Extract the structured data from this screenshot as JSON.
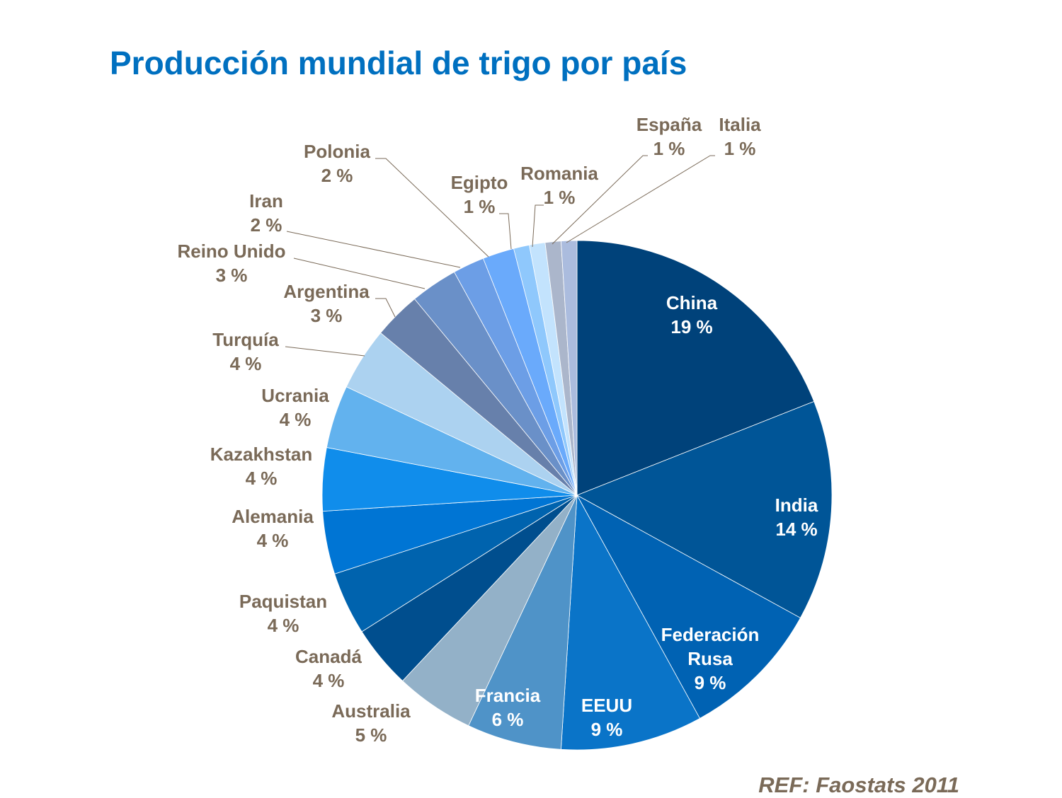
{
  "chart_data": {
    "type": "pie",
    "title": "Producción mundial de trigo por país",
    "source": "REF: Faostats 2011",
    "unit": "%",
    "slices": [
      {
        "name": "China",
        "value": 19,
        "label": "19 %",
        "color": "#00427A"
      },
      {
        "name": "India",
        "value": 14,
        "label": "14 %",
        "color": "#005597"
      },
      {
        "name": "Federación Rusa",
        "value": 9,
        "label": "9 %",
        "color": "#0062B3"
      },
      {
        "name": "EEUU",
        "value": 9,
        "label": "9 %",
        "color": "#0A74C8"
      },
      {
        "name": "Francia",
        "value": 6,
        "label": "6 %",
        "color": "#4F93C8"
      },
      {
        "name": "Australia",
        "value": 5,
        "label": "5 %",
        "color": "#93B1C8"
      },
      {
        "name": "Canadá",
        "value": 4,
        "label": "4 %",
        "color": "#004E8E"
      },
      {
        "name": "Paquistan",
        "value": 4,
        "label": "4 %",
        "color": "#0063AE"
      },
      {
        "name": "Alemania",
        "value": 4,
        "label": "4 %",
        "color": "#0075D4"
      },
      {
        "name": "Kazakhstan",
        "value": 4,
        "label": "4 %",
        "color": "#108DEB"
      },
      {
        "name": "Ucrania",
        "value": 4,
        "label": "4 %",
        "color": "#62B2EE"
      },
      {
        "name": "Turquía",
        "value": 4,
        "label": "4 %",
        "color": "#ACD2F0"
      },
      {
        "name": "Argentina",
        "value": 3,
        "label": "3 %",
        "color": "#6780AB"
      },
      {
        "name": "Reino Unido",
        "value": 3,
        "label": "3 %",
        "color": "#6A90C8"
      },
      {
        "name": "Iran",
        "value": 2,
        "label": "2 %",
        "color": "#6C9EE6"
      },
      {
        "name": "Polonia",
        "value": 2,
        "label": "2 %",
        "color": "#6AAAFB"
      },
      {
        "name": "Egipto",
        "value": 1,
        "label": "1 %",
        "color": "#8FC8FC"
      },
      {
        "name": "Romania",
        "value": 1,
        "label": "1 %",
        "color": "#C3E3FD"
      },
      {
        "name": "España",
        "value": 1,
        "label": "1 %",
        "color": "#ABB6CB"
      },
      {
        "name": "Italia",
        "value": 1,
        "label": "1 %",
        "color": "#ABBCDE"
      }
    ],
    "start": "top",
    "direction": "clockwise",
    "label_color": "#7A6A58",
    "inside_label_color": "#FFFFFF",
    "title_color": "#0070C0"
  }
}
